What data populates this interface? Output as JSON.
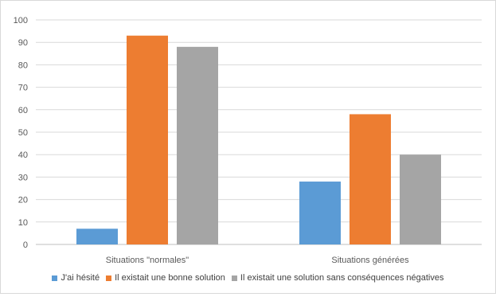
{
  "chart_data": {
    "type": "bar",
    "categories": [
      "Situations \"normales\"",
      "Situations générées"
    ],
    "series": [
      {
        "name": "J'ai hésité",
        "values": [
          7,
          28
        ],
        "color": "#5b9bd5"
      },
      {
        "name": "Il existait une bonne solution",
        "values": [
          93,
          58
        ],
        "color": "#ed7d31"
      },
      {
        "name": "Il existait une solution sans conséquences négatives",
        "values": [
          88,
          40
        ],
        "color": "#a5a5a5"
      }
    ],
    "ylim": [
      0,
      100
    ],
    "yticks": [
      0,
      10,
      20,
      30,
      40,
      50,
      60,
      70,
      80,
      90,
      100
    ],
    "grid": true,
    "legend_position": "bottom",
    "gridline_color": "#d9d9d9",
    "axis_color": "#bfbfbf",
    "text_color": "#595959"
  }
}
